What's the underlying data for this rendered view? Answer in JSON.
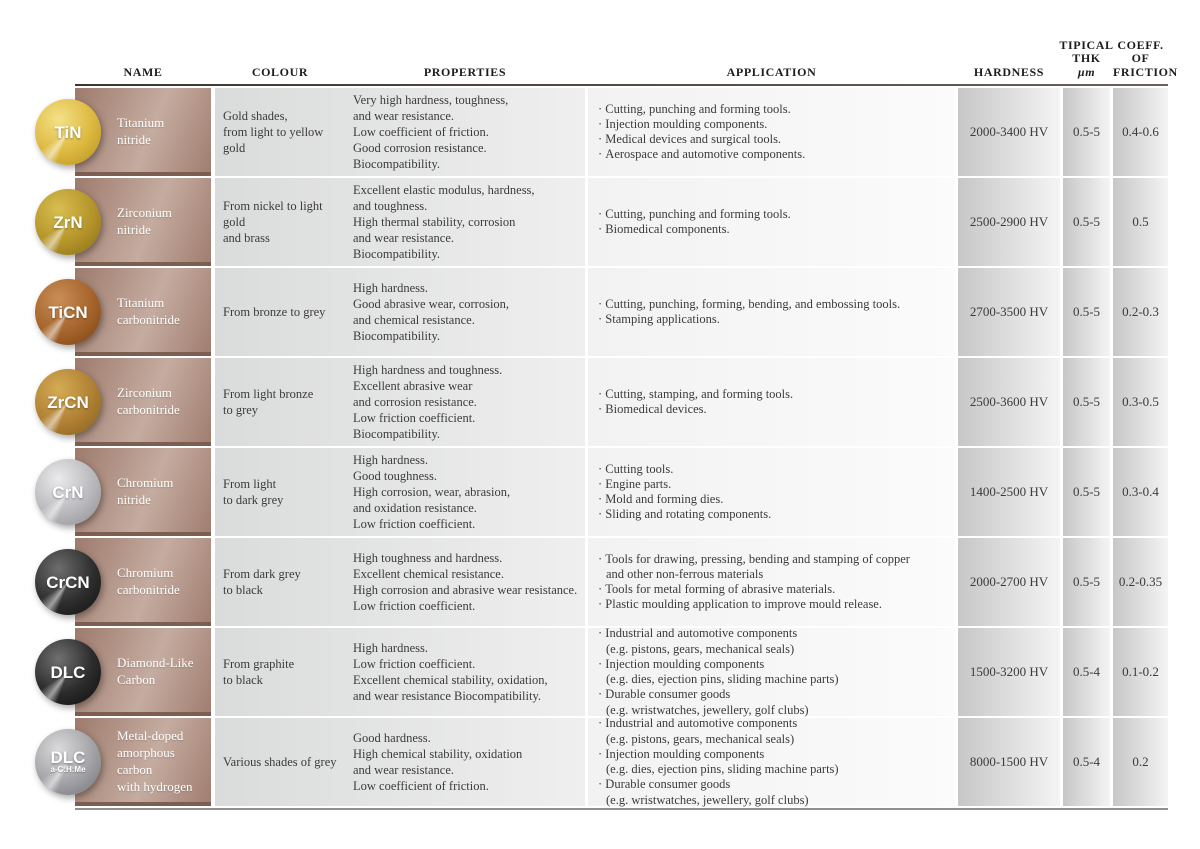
{
  "header": {
    "name": "NAME",
    "colour": "COLOUR",
    "properties": "PROPERTIES",
    "application": "APPLICATION",
    "hardness": "HARDNESS",
    "thk": {
      "l1": "TIPICAL",
      "l2": "THK",
      "l3": "µm"
    },
    "friction": "COEFF.\nOF\nFRICTION"
  },
  "rows": [
    {
      "badge": "TiN",
      "badge_sub": "",
      "badge_colors": {
        "light": "#f4e187",
        "main": "#ddb83f",
        "dark": "#b38e1f"
      },
      "name": "Titanium\nnitride",
      "colour": "Gold shades,\nfrom light to yellow gold",
      "properties": "Very high hardness, toughness,\nand wear resistance.\nLow coefficient of friction.\nGood corrosion resistance.\nBiocompatibility.",
      "applications": [
        "Cutting, punching and forming tools.",
        "Injection moulding components.",
        "Medical devices and surgical tools.",
        "Aerospace and automotive components."
      ],
      "hardness": "2000-3400 HV",
      "thk": "0.5-5",
      "friction": "0.4-0.6"
    },
    {
      "badge": "ZrN",
      "badge_sub": "",
      "badge_colors": {
        "light": "#d8be50",
        "main": "#b4942a",
        "dark": "#876c14"
      },
      "name": "Zirconium\nnitride",
      "colour": "From nickel to light gold\nand brass",
      "properties": "Excellent elastic modulus, hardness,\nand toughness.\nHigh thermal stability, corrosion\nand wear resistance.\nBiocompatibility.",
      "applications": [
        "Cutting, punching and forming tools.",
        "Biomedical components."
      ],
      "hardness": "2500-2900 HV",
      "thk": "0.5-5",
      "friction": "0.5"
    },
    {
      "badge": "TiCN",
      "badge_sub": "",
      "badge_colors": {
        "light": "#c98e56",
        "main": "#a4632a",
        "dark": "#7a4316"
      },
      "name": "Titanium\ncarbonitride",
      "colour": "From bronze to grey",
      "properties": "High hardness.\nGood abrasive wear, corrosion,\nand chemical resistance.\nBiocompatibility.",
      "applications": [
        "Cutting, punching, forming, bending, and embossing tools.",
        "Stamping applications."
      ],
      "hardness": "2700-3500 HV",
      "thk": "0.5-5",
      "friction": "0.2-0.3"
    },
    {
      "badge": "ZrCN",
      "badge_sub": "",
      "badge_colors": {
        "light": "#d4ab55",
        "main": "#b08033",
        "dark": "#835f1b"
      },
      "name": "Zirconium\ncarbonitride",
      "colour": "From light bronze\nto grey",
      "properties": "High hardness and toughness.\nExcellent abrasive wear\nand corrosion resistance.\nLow friction coefficient.\nBiocompatibility.",
      "applications": [
        "Cutting, stamping, and forming tools.",
        "Biomedical devices."
      ],
      "hardness": "2500-3600 HV",
      "thk": "0.5-5",
      "friction": "0.3-0.5"
    },
    {
      "badge": "CrN",
      "badge_sub": "",
      "badge_colors": {
        "light": "#eaeaec",
        "main": "#b9b9bd",
        "dark": "#8d8d91"
      },
      "name": "Chromium\nnitride",
      "colour": "From light\nto dark grey",
      "properties": "High hardness.\nGood toughness.\nHigh corrosion, wear, abrasion,\nand oxidation resistance.\nLow friction coefficient.",
      "applications": [
        "Cutting tools.",
        "Engine parts.",
        "Mold and forming dies.",
        "Sliding and rotating components."
      ],
      "hardness": "1400-2500 HV",
      "thk": "0.5-5",
      "friction": "0.3-0.4"
    },
    {
      "badge": "CrCN",
      "badge_sub": "",
      "badge_colors": {
        "light": "#6d6d6d",
        "main": "#2e2e2e",
        "dark": "#101010"
      },
      "name": "Chromium\ncarbonitride",
      "colour": "From dark grey\nto black",
      "properties": "High toughness and hardness.\nExcellent chemical resistance.\nHigh corrosion and abrasive wear resistance.\nLow friction coefficient.",
      "applications": [
        "Tools for drawing, pressing, bending and stamping of copper\nand other non-ferrous materials",
        "Tools for metal forming of abrasive materials.",
        "Plastic moulding application to improve mould release."
      ],
      "hardness": "2000-2700 HV",
      "thk": "0.5-5",
      "friction": "0.2-0.35"
    },
    {
      "badge": "DLC",
      "badge_sub": "",
      "badge_colors": {
        "light": "#707070",
        "main": "#2b2b2b",
        "dark": "#0d0d0d"
      },
      "name": "Diamond-Like\nCarbon",
      "colour": "From graphite\nto black",
      "properties": "High hardness.\nLow friction coefficient.\nExcellent chemical stability, oxidation,\nand wear resistance Biocompatibility.",
      "applications": [
        "Industrial and automotive components\n(e.g. pistons, gears, mechanical seals)",
        "Injection moulding components\n(e.g. dies, ejection pins, sliding machine parts)",
        "Durable consumer goods\n(e.g. wristwatches, jewellery, golf clubs)"
      ],
      "hardness": "1500-3200 HV",
      "thk": "0.5-4",
      "friction": "0.1-0.2"
    },
    {
      "badge": "DLC",
      "badge_sub": "a-C:H:Me",
      "badge_colors": {
        "light": "#dadadc",
        "main": "#a3a3a7",
        "dark": "#727276"
      },
      "name": "Metal-doped\namorphous carbon\nwith hydrogen",
      "colour": "Various shades of grey",
      "properties": "Good hardness.\nHigh chemical stability, oxidation\nand wear resistance.\nLow coefficient of friction.",
      "applications": [
        "Industrial and automotive components\n(e.g. pistons, gears, mechanical seals)",
        "Injection moulding components\n(e.g. dies, ejection pins, sliding machine parts)",
        "Durable consumer goods\n(e.g. wristwatches, jewellery, golf clubs)"
      ],
      "hardness": "8000-1500 HV",
      "thk": "0.5-4",
      "friction": "0.2"
    }
  ]
}
